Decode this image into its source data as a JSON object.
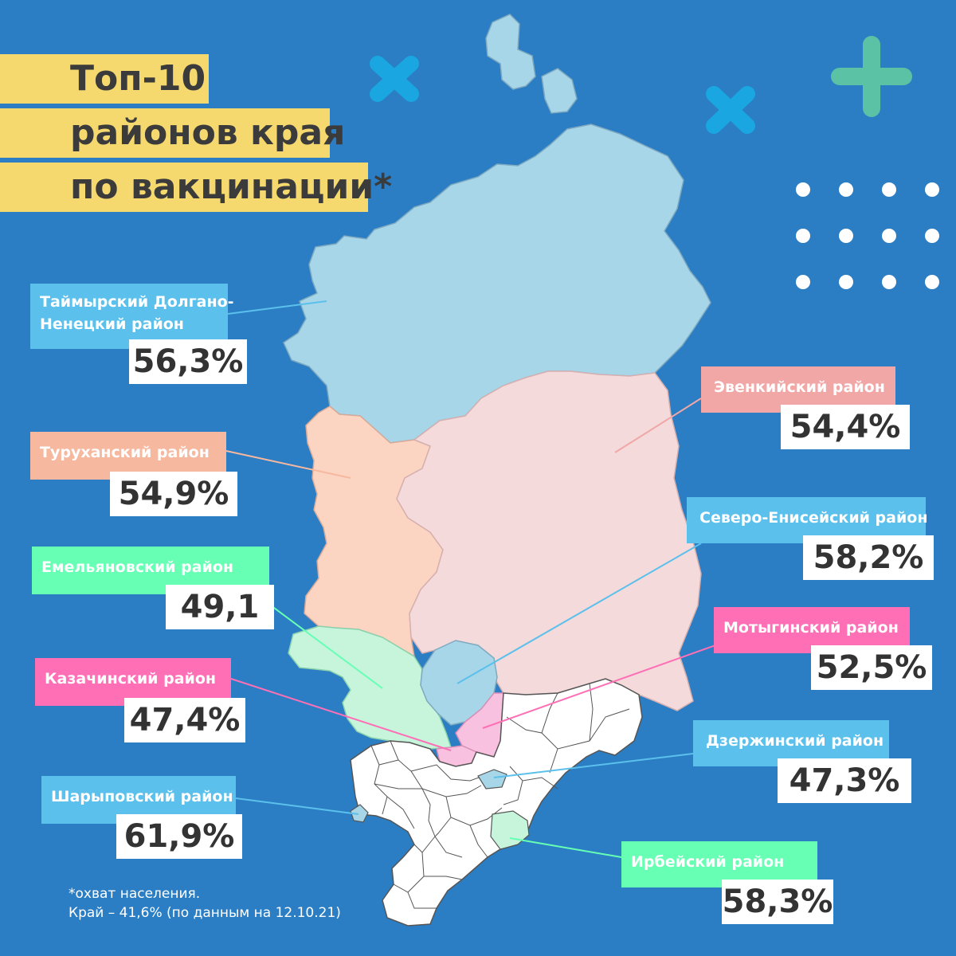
{
  "title": {
    "line1": "Топ-10",
    "line2": "районов края",
    "line3": "по вакцинации*"
  },
  "districts": {
    "taimyr": {
      "name_line1": "Таймырский Долгано-",
      "name_line2": "Ненецкий район",
      "value": "56,3%",
      "color": "#5bc0eb"
    },
    "turukhansk": {
      "name": "Туруханский район",
      "value": "54,9%",
      "color": "#f7b8a0"
    },
    "emelyanovo": {
      "name": "Емельяновский район",
      "value": "49,1",
      "color": "#66ffb3"
    },
    "kazachinsky": {
      "name": "Казачинский район",
      "value": "47,4%",
      "color": "#ff6fb5"
    },
    "sharypovo": {
      "name": "Шарыповский район",
      "value": "61,9%",
      "color": "#5bc0eb"
    },
    "evenki": {
      "name": "Эвенкийский район",
      "value": "54,4%",
      "color": "#f2a7a7"
    },
    "severo_eniseisky": {
      "name": "Северо-Енисейский район",
      "value": "58,2%",
      "color": "#5bc0eb"
    },
    "motygino": {
      "name": "Мотыгинский район",
      "value": "52,5%",
      "color": "#ff6fb5"
    },
    "dzerzhinsky": {
      "name": "Дзержинский район",
      "value": "47,3%",
      "color": "#5bc0eb"
    },
    "irbey": {
      "name": "Ирбейский район",
      "value": "58,3%",
      "color": "#66ffb3"
    }
  },
  "footnote": {
    "line1": "*охват населения.",
    "line2": "Край – 41,6% (по данным на 12.10.21)"
  },
  "colors": {
    "background": "#2b7ec4",
    "title_bg": "#f5d96e",
    "region_taimyr": "#a7d6e8",
    "region_evenki": "#f4dadb",
    "region_turukhansk": "#fbd4c2",
    "region_south": "#ffffff"
  }
}
